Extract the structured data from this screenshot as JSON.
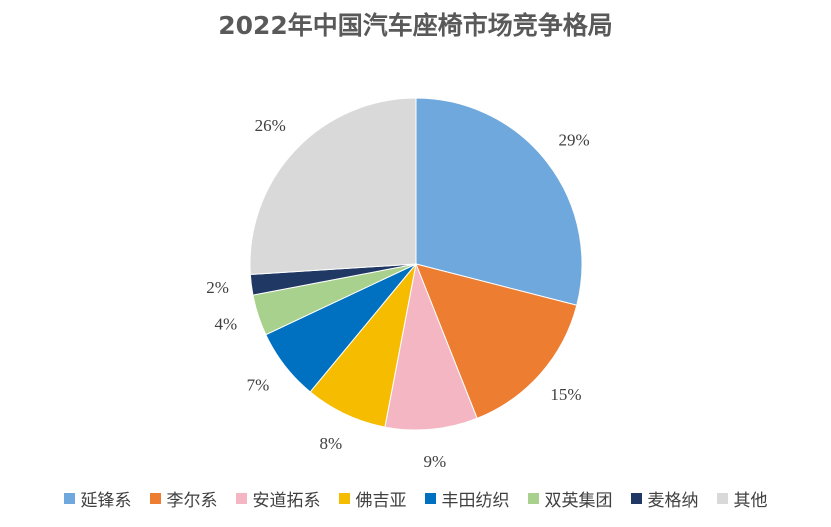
{
  "chart_data": {
    "type": "pie",
    "title": "2022年中国汽车座椅市场竞争格局",
    "categories": [
      "延锋系",
      "李尔系",
      "安道拓系",
      "佛吉亚",
      "丰田纺织",
      "双英集团",
      "麦格纳",
      "其他"
    ],
    "values": [
      29,
      15,
      9,
      8,
      7,
      4,
      2,
      26
    ],
    "labels": [
      "29%",
      "15%",
      "9%",
      "8%",
      "7%",
      "4%",
      "2%",
      "26%"
    ],
    "colors": [
      "#6FA8DC",
      "#ED7D31",
      "#F4B6C2",
      "#F5BC00",
      "#0070C0",
      "#A9D18E",
      "#203864",
      "#D9D9D9"
    ],
    "start": "12 o'clock",
    "direction": "clockwise",
    "legend_position": "bottom"
  }
}
